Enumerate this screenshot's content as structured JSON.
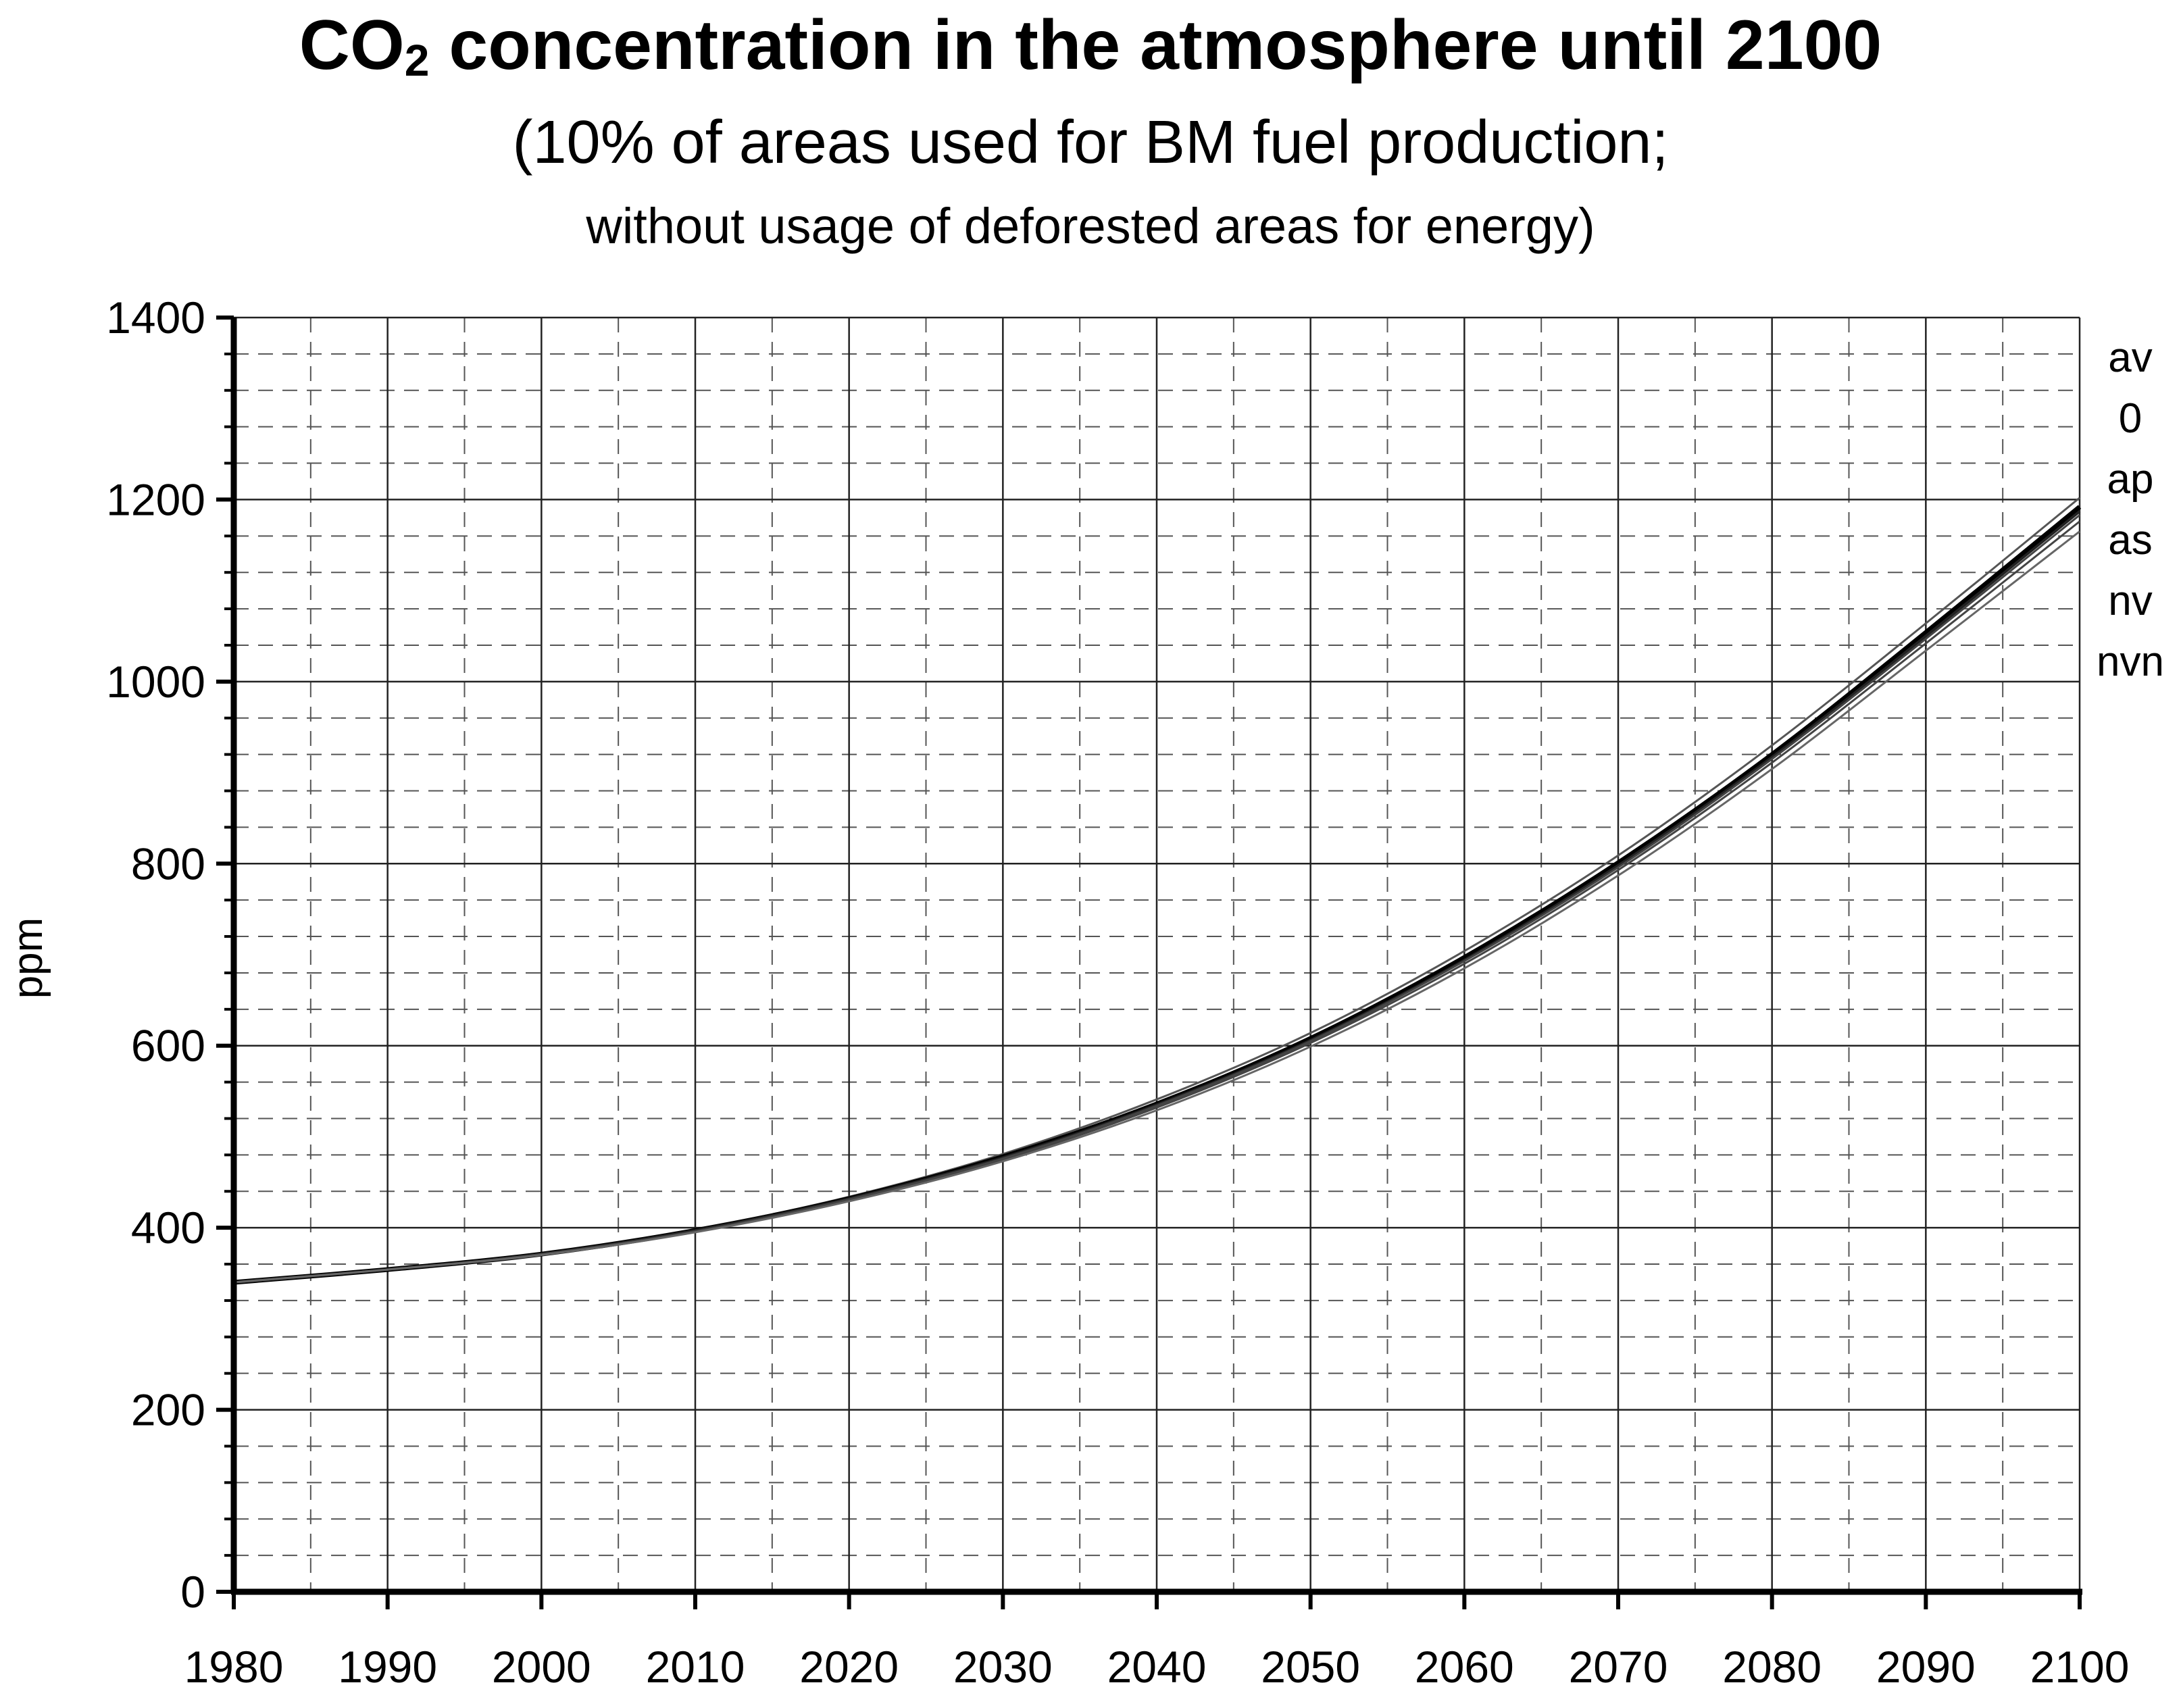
{
  "title_main": "CO",
  "title_sub": "2",
  "title_rest": " concentration in the atmosphere until 2100",
  "subtitle_1": "(10% of areas used for BM fuel production;",
  "subtitle_2": "without usage of deforested areas for energy)",
  "chart_data": {
    "type": "line",
    "title": "CO2 concentration in the atmosphere until 2100",
    "xlabel": "",
    "ylabel": "ppm",
    "xlim": [
      1980,
      2100
    ],
    "ylim": [
      0,
      1400
    ],
    "x_major_step": 10,
    "x_minor_step": 5,
    "y_major_step": 200,
    "y_minor_step": 40,
    "grid": true,
    "x_ticks": [
      1980,
      1990,
      2000,
      2010,
      2020,
      2030,
      2040,
      2050,
      2060,
      2070,
      2080,
      2090,
      2100
    ],
    "y_ticks": [
      0,
      200,
      400,
      600,
      800,
      1000,
      1200,
      1400
    ],
    "legend_position": "right",
    "series": [
      {
        "name": "av",
        "x": [
          1980,
          1990,
          2000,
          2010,
          2020,
          2030,
          2040,
          2050,
          2060,
          2070,
          2080,
          2090,
          2100
        ],
        "values": [
          340,
          354,
          372,
          398,
          434,
          481,
          541,
          614,
          704,
          809,
          930,
          1064,
          1202
        ]
      },
      {
        "name": "0",
        "x": [
          1980,
          1990,
          2000,
          2010,
          2020,
          2030,
          2040,
          2050,
          2060,
          2070,
          2080,
          2090,
          2100
        ],
        "values": [
          340,
          354,
          371,
          397,
          432,
          478,
          536,
          608,
          697,
          801,
          920,
          1054,
          1192
        ]
      },
      {
        "name": "ap",
        "x": [
          1980,
          1990,
          2000,
          2010,
          2020,
          2030,
          2040,
          2050,
          2060,
          2070,
          2080,
          2090,
          2100
        ],
        "values": [
          340,
          354,
          371,
          397,
          432,
          477,
          535,
          606,
          694,
          798,
          917,
          1050,
          1187
        ]
      },
      {
        "name": "as",
        "x": [
          1980,
          1990,
          2000,
          2010,
          2020,
          2030,
          2040,
          2050,
          2060,
          2070,
          2080,
          2090,
          2100
        ],
        "values": [
          340,
          354,
          371,
          396,
          431,
          476,
          534,
          605,
          693,
          796,
          915,
          1047,
          1183
        ]
      },
      {
        "name": "nv",
        "x": [
          1980,
          1990,
          2000,
          2010,
          2020,
          2030,
          2040,
          2050,
          2060,
          2070,
          2080,
          2090,
          2100
        ],
        "values": [
          340,
          354,
          371,
          396,
          431,
          475,
          532,
          603,
          690,
          793,
          911,
          1042,
          1176
        ]
      },
      {
        "name": "nvn",
        "x": [
          1980,
          1990,
          2000,
          2010,
          2020,
          2030,
          2040,
          2050,
          2060,
          2070,
          2080,
          2090,
          2100
        ],
        "values": [
          340,
          354,
          370,
          395,
          429,
          473,
          529,
          599,
          685,
          787,
          904,
          1034,
          1165
        ]
      }
    ]
  }
}
